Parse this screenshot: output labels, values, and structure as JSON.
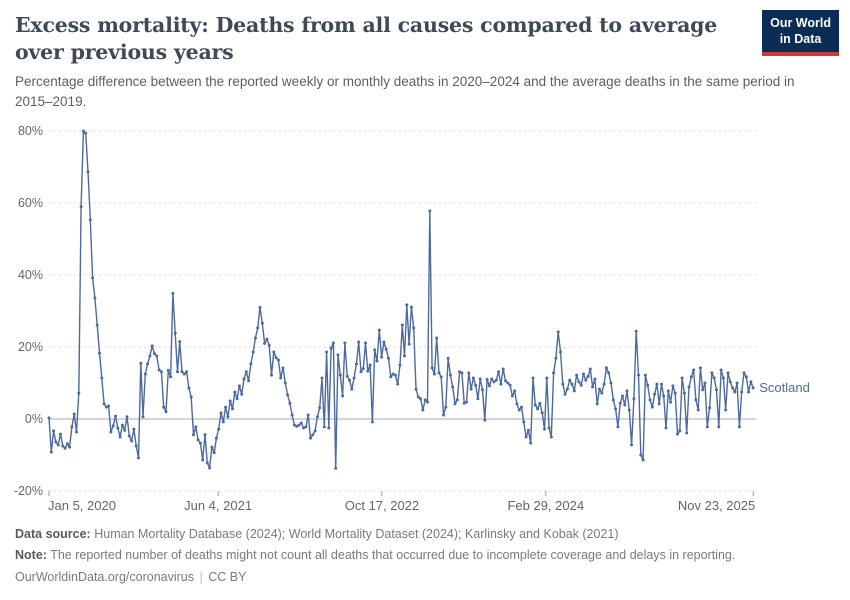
{
  "header": {
    "logo_line1": "Our World",
    "logo_line2": "in Data"
  },
  "chart_data": {
    "type": "line",
    "title": "Excess mortality: Deaths from all causes compared to average over previous years",
    "subtitle": "Percentage difference between the reported weekly or monthly deaths in 2020–2024 and the average deaths in the same period in 2015–2019.",
    "entity_label": "Scotland",
    "line_color": "#4c6a9c",
    "grid": true,
    "legend_position": "end-of-line",
    "ylim": [
      -20,
      80
    ],
    "y_ticks": [
      {
        "label": "80%",
        "value": 80
      },
      {
        "label": "60%",
        "value": 60
      },
      {
        "label": "40%",
        "value": 40
      },
      {
        "label": "20%",
        "value": 20
      },
      {
        "label": "0%",
        "value": 0
      },
      {
        "label": "-20%",
        "value": -20
      }
    ],
    "x_ticks": [
      {
        "label": "Jan 5, 2020",
        "day": 0
      },
      {
        "label": "Jun 4, 2021",
        "day": 516
      },
      {
        "label": "Oct 17, 2022",
        "day": 1016
      },
      {
        "label": "Feb 29, 2024",
        "day": 1516
      },
      {
        "label": "Nov 23, 2025",
        "day": 2149
      }
    ],
    "x_total_days": 2156,
    "point_interval_days": 7,
    "series": [
      {
        "name": "Scotland",
        "unit": "%",
        "values": [
          0.3,
          -9.2,
          -3.3,
          -6.4,
          -7.2,
          -4.2,
          -7.5,
          -8.1,
          -6.9,
          -7.8,
          -2.2,
          1.4,
          -3.6,
          7.2,
          59,
          80,
          79.4,
          68.7,
          55.3,
          39.2,
          33.6,
          26.1,
          18.3,
          11.4,
          4.2,
          3.3,
          3.6,
          -3.6,
          -1.9,
          0.8,
          -2.5,
          -5,
          -1.7,
          -3.1,
          0.6,
          -4.7,
          -6.1,
          -2.8,
          -7.5,
          -10.8,
          15.5,
          0.6,
          12.5,
          15.3,
          17.5,
          20.3,
          18.1,
          17.5,
          13.6,
          13.1,
          3.3,
          2,
          13.5,
          11.7,
          34.9,
          23.8,
          13.1,
          21.5,
          13.1,
          12.5,
          13.1,
          8.6,
          6.1,
          -4.4,
          -2.2,
          -5.8,
          -6.7,
          -11.4,
          -4.4,
          -12.2,
          -13.6,
          -7.8,
          -9.4,
          -5.3,
          -2.8,
          1.7,
          -0.8,
          3.3,
          0.6,
          5,
          2.8,
          7.5,
          5.6,
          9.2,
          6.9,
          11.1,
          13.1,
          10.6,
          15.3,
          18.6,
          22.5,
          25.3,
          31,
          26.6,
          21,
          22.2,
          20.5,
          12.2,
          18.6,
          17,
          16.4,
          11.4,
          14.2,
          10,
          6.7,
          4.4,
          1.1,
          -1.7,
          -2,
          -1.7,
          -1.1,
          -2.5,
          -2.2,
          1.1,
          -5.3,
          -4.4,
          -3.3,
          0.6,
          3.1,
          11.4,
          -2.2,
          18.6,
          -2.5,
          19.7,
          21.1,
          -13.7,
          17.8,
          12.2,
          6.4,
          21.1,
          11.9,
          10.8,
          8.3,
          11.4,
          15.3,
          21.4,
          13.1,
          14,
          21.1,
          13.3,
          15,
          -0.8,
          19.2,
          16.1,
          24.7,
          17.2,
          21.4,
          19.4,
          16.9,
          11.7,
          12.5,
          12.2,
          9.7,
          15,
          26.1,
          17.5,
          31.7,
          20.8,
          31.1,
          25.3,
          8.3,
          6.1,
          5.6,
          2.5,
          5.3,
          4.7,
          57.8,
          14.2,
          12.5,
          22.5,
          12.8,
          11.7,
          1.1,
          3.3,
          16.9,
          12.2,
          8.9,
          4.2,
          5.3,
          13.1,
          12.8,
          4.4,
          4.7,
          12.8,
          8.3,
          11.4,
          9.4,
          5.6,
          11.1,
          8.1,
          -0.3,
          11,
          9.2,
          11.1,
          10.3,
          10.8,
          13.1,
          9.7,
          13.9,
          10.6,
          10,
          9.4,
          6.4,
          7.8,
          4.2,
          2.5,
          3.3,
          -0.8,
          -5,
          -3.1,
          -6.7,
          11.4,
          3.9,
          2.8,
          4.4,
          1.7,
          -2.8,
          11.4,
          -2.5,
          -5,
          12.8,
          16.9,
          24.2,
          18.6,
          9.7,
          6.9,
          8.3,
          10.8,
          9.7,
          7.8,
          12.2,
          10.3,
          9.4,
          12.5,
          10.8,
          11.9,
          13.9,
          8.9,
          11.1,
          4.2,
          8.3,
          7.2,
          9.7,
          14.2,
          12.8,
          10,
          5.3,
          2.8,
          -2.2,
          4.4,
          6.4,
          3.9,
          7.8,
          2.5,
          -7.2,
          5.6,
          24.4,
          12.2,
          -10,
          -11.4,
          12.2,
          9.4,
          5.3,
          3.3,
          6.9,
          9.7,
          4.2,
          9.7,
          6.4,
          -2.5,
          7.8,
          4.7,
          9.2,
          7.2,
          -4.2,
          -3.3,
          11.4,
          7.2,
          -3.9,
          8.9,
          11.7,
          13.6,
          5.3,
          2.5,
          14.2,
          8.1,
          10,
          -2.2,
          3.1,
          12.8,
          11.4,
          8.1,
          -2.2,
          13.6,
          11.4,
          2.5,
          12.8,
          10.3,
          8.6,
          7.5,
          10,
          -2.2,
          7.5,
          12.8,
          11.7,
          7.5,
          10.3,
          8.6
        ]
      }
    ]
  },
  "footer": {
    "data_source_label": "Data source:",
    "data_source_text": "Human Mortality Database (2024); World Mortality Dataset (2024); Karlinsky and Kobak (2021)",
    "note_label": "Note:",
    "note_text": "The reported number of deaths might not count all deaths that occurred due to incomplete coverage and delays in reporting.",
    "link_text": "OurWorldinData.org/coronavirus",
    "separator": "|",
    "license_text": "CC BY"
  }
}
